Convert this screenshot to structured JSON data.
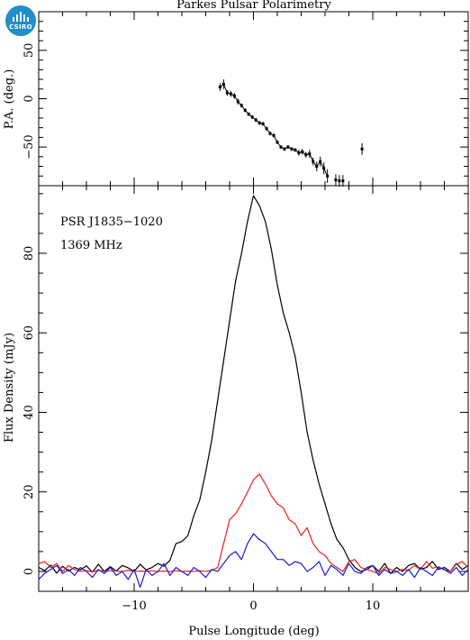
{
  "logo": {
    "text": "CSIRO",
    "color": "#1f8ec9"
  },
  "chart_data": [
    {
      "type": "scatter",
      "title": "Parkes Pulsar Polarimetry",
      "ylabel": "P.A. (deg.)",
      "xlim": [
        -18,
        18
      ],
      "ylim": [
        -90,
        90
      ],
      "yticks": [
        -50,
        0,
        50
      ],
      "series": [
        {
          "color": "#000000",
          "x": [
            -2.8,
            -2.5,
            -2.2,
            -1.9,
            -1.6,
            -1.3,
            -1.0,
            -0.7,
            -0.4,
            -0.1,
            0.2,
            0.5,
            0.8,
            1.1,
            1.4,
            1.7,
            2.0,
            2.3,
            2.6,
            2.9,
            3.2,
            3.5,
            3.8,
            4.1,
            4.4,
            4.7,
            5.0,
            5.3,
            5.6,
            5.9,
            6.2
          ],
          "y": [
            12,
            15,
            6,
            5,
            3,
            -3,
            -7,
            -12,
            -16,
            -19,
            -22,
            -25,
            -26,
            -31,
            -36,
            -38,
            -45,
            -50,
            -52,
            -50,
            -52,
            -53,
            -56,
            -55,
            -58,
            -57,
            -65,
            -70,
            -65,
            -72,
            -80
          ],
          "yerr": [
            4,
            5,
            3,
            3,
            3,
            3,
            2,
            2,
            2,
            2,
            2,
            2,
            2,
            2,
            2,
            2,
            2,
            2,
            2,
            2,
            2,
            2,
            3,
            3,
            3,
            4,
            4,
            5,
            5,
            6,
            7
          ]
        },
        {
          "color": "#000000",
          "x": [
            6.9,
            7.2,
            7.5
          ],
          "y": [
            -84,
            -85,
            -85
          ],
          "yerr": [
            6,
            6,
            6
          ]
        },
        {
          "color": "#000000",
          "x": [
            9.1
          ],
          "y": [
            -52
          ],
          "yerr": [
            6
          ]
        }
      ]
    },
    {
      "type": "line",
      "xlabel": "Pulse Longitude (deg)",
      "ylabel": "Flux Density (mJy)",
      "xlim": [
        -18,
        18
      ],
      "ylim": [
        -5,
        97
      ],
      "xticks": [
        -10,
        0,
        10
      ],
      "yticks": [
        0,
        20,
        40,
        60,
        80
      ],
      "annotations": [
        "PSR J1835−1020",
        "1369 MHz"
      ],
      "series": [
        {
          "color": "#000000",
          "x": [
            -18.0,
            -17.5,
            -17.0,
            -16.5,
            -16.0,
            -15.5,
            -15.0,
            -14.5,
            -14.0,
            -13.5,
            -13.0,
            -12.5,
            -12.0,
            -11.5,
            -11.0,
            -10.5,
            -10.0,
            -9.5,
            -9.0,
            -8.5,
            -8.0,
            -7.5,
            -7.0,
            -6.5,
            -6.0,
            -5.5,
            -5.0,
            -4.5,
            -4.0,
            -3.5,
            -3.0,
            -2.5,
            -2.0,
            -1.5,
            -1.0,
            -0.5,
            0.0,
            0.5,
            1.0,
            1.5,
            2.0,
            2.5,
            3.0,
            3.5,
            4.0,
            4.5,
            5.0,
            5.5,
            6.0,
            6.5,
            7.0,
            7.5,
            8.0,
            8.5,
            9.0,
            9.5,
            10.0,
            10.5,
            11.0,
            11.5,
            12.0,
            12.5,
            13.0,
            13.5,
            14.0,
            14.5,
            15.0,
            15.5,
            16.0,
            16.5,
            17.0,
            17.5,
            18.0
          ],
          "y": [
            1.0,
            0.2,
            1.6,
            -0.4,
            1.3,
            0.1,
            1.0,
            0.4,
            1.4,
            -0.2,
            1.8,
            0.0,
            1.2,
            0.1,
            1.5,
            0.9,
            0.0,
            1.8,
            0.4,
            1.0,
            2.0,
            1.3,
            2.8,
            7.0,
            7.5,
            9.0,
            14.0,
            18.0,
            25.0,
            33.0,
            43.0,
            53.0,
            63.0,
            73.0,
            80.0,
            88.0,
            94.5,
            92.0,
            88.0,
            81.0,
            72.0,
            65.0,
            60.0,
            54.0,
            45.0,
            35.0,
            28.0,
            22.0,
            17.0,
            12.0,
            8.0,
            6.0,
            3.0,
            1.0,
            0.0,
            0.5,
            1.5,
            0.0,
            2.0,
            -0.5,
            1.0,
            0.0,
            1.5,
            2.0,
            0.5,
            1.0,
            2.5,
            0.5,
            1.0,
            0.0,
            2.0,
            0.5,
            1.5
          ]
        },
        {
          "color": "#e8221f",
          "x": [
            -18.0,
            -17.5,
            -17.0,
            -16.5,
            -16.0,
            -15.5,
            -15.0,
            -14.5,
            -14.0,
            -13.5,
            -13.0,
            -12.5,
            -12.0,
            -11.5,
            -11.0,
            -10.5,
            -10.0,
            -9.5,
            -9.0,
            -8.5,
            -8.0,
            -7.5,
            -7.0,
            -6.5,
            -6.0,
            -5.5,
            -5.0,
            -4.5,
            -4.0,
            -3.5,
            -3.0,
            -2.5,
            -2.0,
            -1.5,
            -1.0,
            -0.5,
            0.0,
            0.5,
            1.0,
            1.5,
            2.0,
            2.5,
            3.0,
            3.5,
            4.0,
            4.5,
            5.0,
            5.5,
            6.0,
            6.5,
            7.0,
            7.5,
            8.0,
            8.5,
            9.0,
            9.5,
            10.0,
            10.5,
            11.0,
            11.5,
            12.0,
            12.5,
            13.0,
            13.5,
            14.0,
            14.5,
            15.0,
            15.5,
            16.0,
            16.5,
            17.0,
            17.5,
            18.0
          ],
          "y": [
            2.0,
            2.5,
            1.0,
            2.0,
            0.0,
            1.5,
            0.5,
            0.0,
            0.2,
            -0.1,
            0.3,
            0.0,
            0.2,
            0.1,
            0.0,
            0.3,
            0.0,
            0.1,
            0.0,
            0.2,
            0.0,
            0.1,
            0.0,
            0.2,
            0.0,
            0.1,
            0.0,
            0.2,
            0.0,
            0.3,
            1.0,
            7.0,
            13.0,
            14.5,
            17.0,
            20.0,
            23.0,
            24.5,
            22.0,
            19.0,
            17.0,
            16.0,
            13.0,
            12.0,
            9.0,
            11.0,
            7.0,
            5.0,
            4.0,
            2.0,
            1.0,
            0.0,
            2.5,
            3.0,
            1.0,
            0.5,
            0.0,
            -0.5,
            1.0,
            0.5,
            0.0,
            0.5,
            0.3,
            1.5,
            0.5,
            2.5,
            0.8,
            1.2,
            0.4,
            0.0,
            1.8,
            2.5,
            1.0
          ]
        },
        {
          "color": "#1a1ad6",
          "x": [
            -18.0,
            -17.5,
            -17.0,
            -16.5,
            -16.0,
            -15.5,
            -15.0,
            -14.5,
            -14.0,
            -13.5,
            -13.0,
            -12.5,
            -12.0,
            -11.5,
            -11.0,
            -10.5,
            -10.0,
            -9.5,
            -9.0,
            -8.5,
            -8.0,
            -7.5,
            -7.0,
            -6.5,
            -6.0,
            -5.5,
            -5.0,
            -4.5,
            -4.0,
            -3.5,
            -3.0,
            -2.5,
            -2.0,
            -1.5,
            -1.0,
            -0.5,
            0.0,
            0.5,
            1.0,
            1.5,
            2.0,
            2.5,
            3.0,
            3.5,
            4.0,
            4.5,
            5.0,
            5.5,
            6.0,
            6.5,
            7.0,
            7.5,
            8.0,
            8.5,
            9.0,
            9.5,
            10.0,
            10.5,
            11.0,
            11.5,
            12.0,
            12.5,
            13.0,
            13.5,
            14.0,
            14.5,
            15.0,
            15.5,
            16.0,
            16.5,
            17.0,
            17.5,
            18.0
          ],
          "y": [
            -2.0,
            -0.5,
            0.5,
            1.5,
            -0.5,
            0.5,
            -1.0,
            1.0,
            0.0,
            -1.5,
            0.5,
            -0.5,
            1.0,
            -1.0,
            0.0,
            -2.0,
            0.5,
            -4.0,
            0.5,
            -1.0,
            0.0,
            2.0,
            -1.0,
            1.0,
            0.0,
            -1.0,
            1.0,
            0.0,
            -1.5,
            0.5,
            0.0,
            2.0,
            4.0,
            5.0,
            3.0,
            7.0,
            9.5,
            8.0,
            7.0,
            5.0,
            3.0,
            3.0,
            1.5,
            2.5,
            2.0,
            0.0,
            1.0,
            2.5,
            -1.0,
            1.5,
            0.5,
            -1.0,
            2.0,
            0.0,
            -0.5,
            1.0,
            1.5,
            -1.0,
            0.5,
            -0.5,
            0.0,
            -1.0,
            0.5,
            -1.5,
            1.0,
            0.0,
            -1.0,
            1.0,
            0.5,
            -0.5,
            1.0,
            -1.0,
            0.5
          ]
        }
      ]
    }
  ]
}
